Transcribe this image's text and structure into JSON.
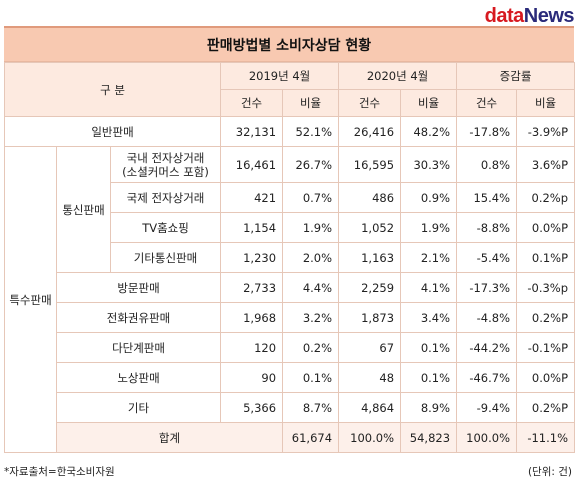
{
  "logo": {
    "part1": "data",
    "part2": "News"
  },
  "title": "판매방법별 소비자상담 현황",
  "header": {
    "category": "구  분",
    "year1": "2019년 4월",
    "year2": "2020년 4월",
    "change": "증감률",
    "count": "건수",
    "ratio": "비율"
  },
  "groups": {
    "special": "특수판매",
    "mailorder": "통신판매"
  },
  "rows": [
    {
      "label": "일반판매",
      "c1": "32,131",
      "r1": "52.1%",
      "c2": "26,416",
      "r2": "48.2%",
      "cc": "-17.8%",
      "cr": "-3.9%P"
    },
    {
      "label": "국내 전자상거래",
      "label2": "(소셜커머스 포함)",
      "c1": "16,461",
      "r1": "26.7%",
      "c2": "16,595",
      "r2": "30.3%",
      "cc": "0.8%",
      "cr": "3.6%P"
    },
    {
      "label": "국제 전자상거래",
      "c1": "421",
      "r1": "0.7%",
      "c2": "486",
      "r2": "0.9%",
      "cc": "15.4%",
      "cr": "0.2%p"
    },
    {
      "label": "TV홈쇼핑",
      "c1": "1,154",
      "r1": "1.9%",
      "c2": "1,052",
      "r2": "1.9%",
      "cc": "-8.8%",
      "cr": "0.0%P"
    },
    {
      "label": "기타통신판매",
      "c1": "1,230",
      "r1": "2.0%",
      "c2": "1,163",
      "r2": "2.1%",
      "cc": "-5.4%",
      "cr": "0.1%P"
    },
    {
      "label": "방문판매",
      "c1": "2,733",
      "r1": "4.4%",
      "c2": "2,259",
      "r2": "4.1%",
      "cc": "-17.3%",
      "cr": "-0.3%p"
    },
    {
      "label": "전화권유판매",
      "c1": "1,968",
      "r1": "3.2%",
      "c2": "1,873",
      "r2": "3.4%",
      "cc": "-4.8%",
      "cr": "0.2%P"
    },
    {
      "label": "다단계판매",
      "c1": "120",
      "r1": "0.2%",
      "c2": "67",
      "r2": "0.1%",
      "cc": "-44.2%",
      "cr": "-0.1%P"
    },
    {
      "label": "노상판매",
      "c1": "90",
      "r1": "0.1%",
      "c2": "48",
      "r2": "0.1%",
      "cc": "-46.7%",
      "cr": "0.0%P"
    },
    {
      "label": "기타",
      "c1": "5,366",
      "r1": "8.7%",
      "c2": "4,864",
      "r2": "8.9%",
      "cc": "-9.4%",
      "cr": "0.2%P"
    },
    {
      "label": "합계",
      "c1": "61,674",
      "r1": "100.0%",
      "c2": "54,823",
      "r2": "100.0%",
      "cc": "-11.1%",
      "cr": "-"
    }
  ],
  "footer": {
    "source": "*자료출처=한국소비자원",
    "unit": "(단위: 건)"
  }
}
